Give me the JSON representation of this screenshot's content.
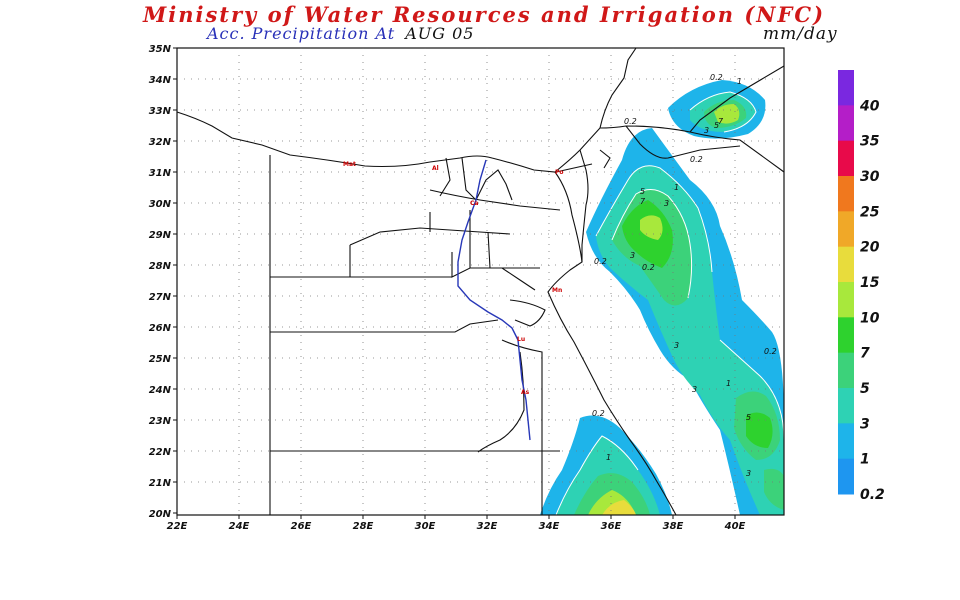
{
  "header": {
    "title": "Ministry of Water Resources and Irrigation (NFC)",
    "subtitle": "Acc. Precipitation  At",
    "date": "AUG 05",
    "units": "mm/day"
  },
  "axes": {
    "lat_labels": [
      "35N",
      "34N",
      "33N",
      "32N",
      "31N",
      "30N",
      "29N",
      "28N",
      "27N",
      "26N",
      "25N",
      "24N",
      "23N",
      "22N",
      "21N",
      "20N"
    ],
    "lon_labels": [
      "22E",
      "24E",
      "26E",
      "28E",
      "30E",
      "32E",
      "34E",
      "36E",
      "38E",
      "40E"
    ]
  },
  "colorbar": {
    "levels": [
      {
        "label": "40",
        "color": "#7a28e0"
      },
      {
        "label": "35",
        "color": "#b41ec8"
      },
      {
        "label": "30",
        "color": "#e80a4a"
      },
      {
        "label": "25",
        "color": "#f0781e"
      },
      {
        "label": "20",
        "color": "#f0a828"
      },
      {
        "label": "15",
        "color": "#e8dc3c"
      },
      {
        "label": "10",
        "color": "#a8e83c"
      },
      {
        "label": "7",
        "color": "#2ed22e"
      },
      {
        "label": "5",
        "color": "#3cd27a"
      },
      {
        "label": "3",
        "color": "#2ed2b4"
      },
      {
        "label": "1",
        "color": "#1eb4ea"
      },
      {
        "label": "0.2",
        "color": "#1e96f0"
      }
    ]
  },
  "cities": [
    "Mat",
    "Al",
    "Po",
    "Ca",
    "Mn",
    "Lu",
    "As"
  ],
  "contour_labels": [
    "0.2",
    "1",
    "3",
    "5",
    "7",
    "0.2",
    "0.2",
    "0.2",
    "1",
    "3",
    "5",
    "7",
    "0.2",
    "3",
    "0.2",
    "3",
    "1",
    "5",
    "3",
    "0.2",
    "1",
    "3"
  ]
}
